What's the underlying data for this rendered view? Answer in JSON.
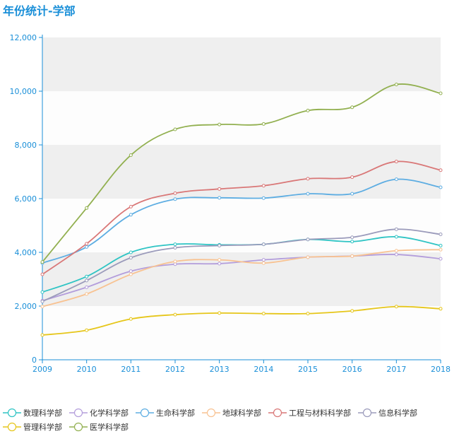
{
  "page": {
    "title": "年份统计-学部"
  },
  "chart_data": {
    "type": "line",
    "title": "年份统计-学部",
    "xlabel": "",
    "ylabel": "",
    "ylim": [
      0,
      12000
    ],
    "yticks": [
      0,
      2000,
      4000,
      6000,
      8000,
      10000,
      12000
    ],
    "ytick_labels": [
      "0",
      "2,000",
      "4,000",
      "6,000",
      "8,000",
      "10,000",
      "12,000"
    ],
    "categories": [
      "2009",
      "2010",
      "2011",
      "2012",
      "2013",
      "2014",
      "2015",
      "2016",
      "2017",
      "2018"
    ],
    "grid": "alternating horizontal bands",
    "legend_position": "bottom",
    "series": [
      {
        "name": "数理科学部",
        "color": "#2ec4c4",
        "values": [
          2520,
          3100,
          4000,
          4300,
          4280,
          4300,
          4480,
          4400,
          4580,
          4250
        ]
      },
      {
        "name": "化学科学部",
        "color": "#b39ddb",
        "values": [
          2200,
          2700,
          3300,
          3560,
          3580,
          3720,
          3820,
          3860,
          3920,
          3760
        ]
      },
      {
        "name": "生命科学部",
        "color": "#5dade2",
        "values": [
          3600,
          4200,
          5400,
          5980,
          6030,
          6020,
          6180,
          6180,
          6720,
          6420
        ]
      },
      {
        "name": "地球科学部",
        "color": "#f8c291",
        "values": [
          1980,
          2450,
          3180,
          3660,
          3720,
          3600,
          3820,
          3860,
          4060,
          4100
        ]
      },
      {
        "name": "工程与材料科学部",
        "color": "#d97777",
        "values": [
          3180,
          4320,
          5700,
          6200,
          6360,
          6480,
          6740,
          6800,
          7380,
          7060
        ]
      },
      {
        "name": "信息科学部",
        "color": "#9b9bbb",
        "values": [
          2170,
          2950,
          3800,
          4170,
          4250,
          4300,
          4480,
          4560,
          4860,
          4670
        ]
      },
      {
        "name": "管理科学部",
        "color": "#e6c61a",
        "values": [
          920,
          1100,
          1520,
          1680,
          1740,
          1720,
          1720,
          1820,
          1980,
          1900
        ]
      },
      {
        "name": "医学科学部",
        "color": "#92b050",
        "values": [
          3640,
          5650,
          7620,
          8580,
          8760,
          8780,
          9280,
          9400,
          10250,
          9920
        ]
      }
    ]
  }
}
